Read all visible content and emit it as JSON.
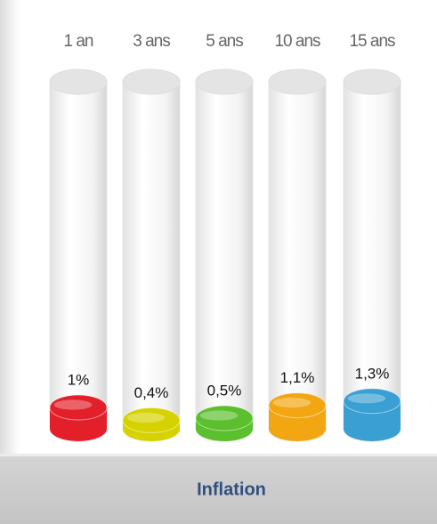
{
  "chart_data": {
    "type": "cylinder",
    "title": "Inflation",
    "categories": [
      "1 an",
      "3 ans",
      "5 ans",
      "10 ans",
      "15 ans"
    ],
    "values": [
      1,
      0.4,
      0.5,
      1.1,
      1.3
    ],
    "value_labels": [
      "1%",
      "0,4%",
      "0,5%",
      "1,1%",
      "1,3%"
    ],
    "colors": [
      "#e3202a",
      "#d6d200",
      "#5cbf2e",
      "#f2a612",
      "#3a9fd2"
    ]
  }
}
